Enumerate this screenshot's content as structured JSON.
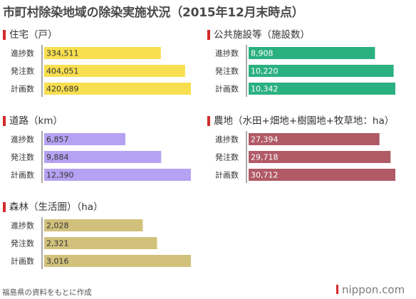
{
  "title": "市町村除染地域の除染実施状況（2015年12月末時点）",
  "source": "福島県の資料をもとに作成",
  "logo": "nippon.com",
  "row_labels": [
    "進捗数",
    "発注数",
    "計画数"
  ],
  "colors": {
    "marker": "#d42b2b",
    "housing": "#f7df4f",
    "public_facilities": "#2bb081",
    "roads": "#b5a2f2",
    "farmland": "#b05a66",
    "forest": "#d2c17c"
  },
  "chart_data": [
    {
      "type": "bar",
      "orientation": "horizontal",
      "title": "住宅（戸）",
      "categories": [
        "進捗数",
        "発注数",
        "計画数"
      ],
      "values": [
        334511,
        404051,
        420689
      ],
      "value_labels": [
        "334,511",
        "404,051",
        "420,689"
      ],
      "color": "#f7df4f",
      "label_color": "#333333"
    },
    {
      "type": "bar",
      "orientation": "horizontal",
      "title": "公共施設等（施設数）",
      "categories": [
        "進捗数",
        "発注数",
        "計画数"
      ],
      "values": [
        8908,
        10220,
        10342
      ],
      "value_labels": [
        "8,908",
        "10,220",
        "10,342"
      ],
      "color": "#2bb081",
      "label_color": "#ffffff"
    },
    {
      "type": "bar",
      "orientation": "horizontal",
      "title": "道路（km）",
      "categories": [
        "進捗数",
        "発注数",
        "計画数"
      ],
      "values": [
        6857,
        9884,
        12390
      ],
      "value_labels": [
        "6,857",
        "9,884",
        "12,390"
      ],
      "color": "#b5a2f2",
      "label_color": "#333333"
    },
    {
      "type": "bar",
      "orientation": "horizontal",
      "title": "農地（水田+畑地+樹園地+牧草地：ha）",
      "categories": [
        "進捗数",
        "発注数",
        "計画数"
      ],
      "values": [
        27394,
        29718,
        30712
      ],
      "value_labels": [
        "27,394",
        "29,718",
        "30,712"
      ],
      "color": "#b05a66",
      "label_color": "#ffffff"
    },
    {
      "type": "bar",
      "orientation": "horizontal",
      "title": "森林（生活圏）（ha）",
      "categories": [
        "進捗数",
        "発注数",
        "計画数"
      ],
      "values": [
        2028,
        2321,
        3016
      ],
      "value_labels": [
        "2,028",
        "2,321",
        "3,016"
      ],
      "color": "#d2c17c",
      "label_color": "#333333"
    }
  ]
}
